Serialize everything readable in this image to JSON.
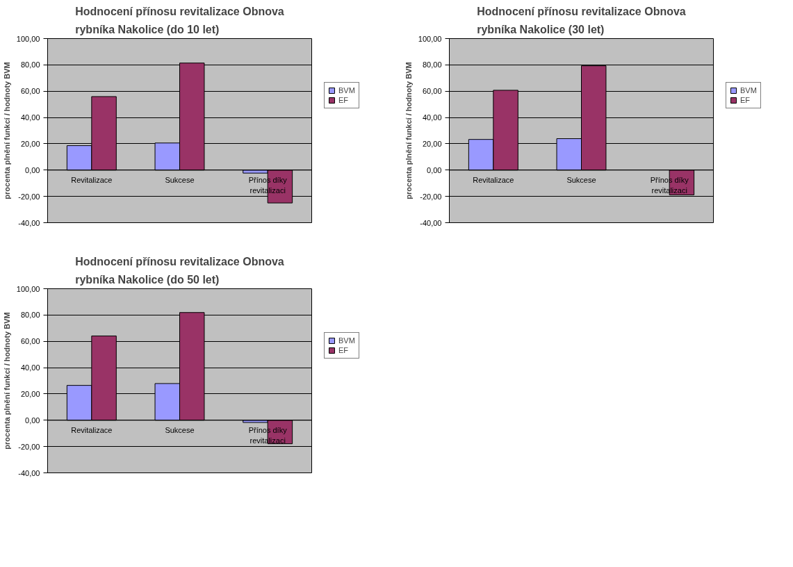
{
  "chart_data": [
    {
      "type": "bar",
      "title": "Hodnocení přínosu revitalizace Obnova rybníka Nakolice (do 10 let)",
      "ylabel": "procenta plnění funkcí / hodnoty BVM",
      "categories": [
        "Revitalizace",
        "Sukcese",
        "Přínos díky revitalizaci"
      ],
      "series": [
        {
          "name": "BVM",
          "color": "#9999ff",
          "values": [
            18.6,
            20.6,
            -2.3
          ]
        },
        {
          "name": "EF",
          "color": "#993366",
          "values": [
            55.9,
            81.4,
            -25.0
          ]
        }
      ],
      "ylim": [
        -40,
        100
      ],
      "yticks": [
        {
          "value": -40,
          "label": "-40,00"
        },
        {
          "value": -20,
          "label": "-20,00"
        },
        {
          "value": 0,
          "label": "0,00"
        },
        {
          "value": 20,
          "label": "20,00"
        },
        {
          "value": 40,
          "label": "40,00"
        },
        {
          "value": 60,
          "label": "60,00"
        },
        {
          "value": 80,
          "label": "80,00"
        },
        {
          "value": 100,
          "label": "100,00"
        }
      ],
      "grid": "y",
      "legend": "right"
    },
    {
      "type": "bar",
      "title": "Hodnocení přínosu revitalizace Obnova rybníka Nakolice (30 let)",
      "ylabel": "procenta plnění funkcí / hodnoty BVM",
      "categories": [
        "Revitalizace",
        "Sukcese",
        "Přínos díky revitalizaci"
      ],
      "series": [
        {
          "name": "BVM",
          "color": "#9999ff",
          "values": [
            23.3,
            23.9,
            null
          ]
        },
        {
          "name": "EF",
          "color": "#993366",
          "values": [
            60.7,
            79.3,
            -18.9
          ]
        }
      ],
      "ylim": [
        -40,
        100
      ],
      "yticks": [
        {
          "value": -40,
          "label": "-40,00"
        },
        {
          "value": -20,
          "label": "-20,00"
        },
        {
          "value": 0,
          "label": "0,00"
        },
        {
          "value": 20,
          "label": "20,00"
        },
        {
          "value": 40,
          "label": "40,00"
        },
        {
          "value": 60,
          "label": "60,00"
        },
        {
          "value": 80,
          "label": "80,00"
        },
        {
          "value": 100,
          "label": "100,00"
        }
      ],
      "grid": "y",
      "legend": "right"
    },
    {
      "type": "bar",
      "title": "Hodnocení přínosu revitalizace Obnova rybníka Nakolice (do 50 let)",
      "ylabel": "procenta plnění funkcí / hodnoty BVM",
      "categories": [
        "Revitalizace",
        "Sukcese",
        "Přínos díky revitalizaci"
      ],
      "series": [
        {
          "name": "BVM",
          "color": "#9999ff",
          "values": [
            26.5,
            27.9,
            -1.7
          ]
        },
        {
          "name": "EF",
          "color": "#993366",
          "values": [
            64.1,
            81.9,
            -17.9
          ]
        }
      ],
      "ylim": [
        -40,
        100
      ],
      "yticks": [
        {
          "value": -40,
          "label": "-40,00"
        },
        {
          "value": -20,
          "label": "-20,00"
        },
        {
          "value": 0,
          "label": "0,00"
        },
        {
          "value": 20,
          "label": "20,00"
        },
        {
          "value": 40,
          "label": "40,00"
        },
        {
          "value": 60,
          "label": "60,00"
        },
        {
          "value": 80,
          "label": "80,00"
        },
        {
          "value": 100,
          "label": "100,00"
        }
      ],
      "grid": "y",
      "legend": "right"
    }
  ]
}
